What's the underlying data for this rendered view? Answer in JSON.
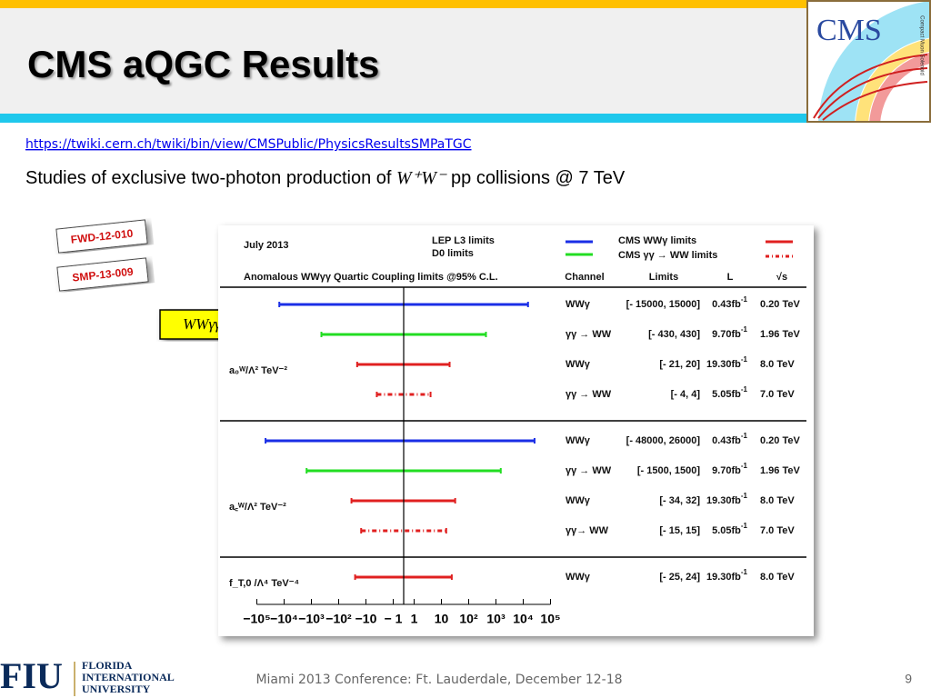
{
  "header": {
    "title": "CMS aQGC Results",
    "logo": "CMS",
    "logo_side": "Compact Muon Solenoid"
  },
  "link": "https://twiki.cern.ch/twiki/bin/view/CMSPublic/PhysicsResultsSMPaTGC",
  "subtitle": {
    "before": "Studies of exclusive two-photon production of",
    "math": "W⁺W⁻",
    "after": "pp collisions @ 7 TeV"
  },
  "tags": [
    "FWD-12-010",
    "SMP-13-009"
  ],
  "callout": "WWγγ",
  "plot": {
    "title": "July 2013",
    "subtitle": "Anomalous WWγγ Quartic Coupling limits @95% C.L.",
    "legend": [
      {
        "name": "LEP L3 limits",
        "color": "#1a2ee6",
        "dashed": false
      },
      {
        "name": "D0 limits",
        "color": "#22dd22",
        "dashed": false
      },
      {
        "name": "CMS WWγ limits",
        "color": "#e02020",
        "dashed": false
      },
      {
        "name": "CMS γγ → WW limits",
        "color": "#e02020",
        "dashed": true
      }
    ],
    "columns": [
      "Channel",
      "Limits",
      "L",
      "√s"
    ],
    "lumi_sup": "-1",
    "groups": [
      {
        "label": "a₀ᵂ/Λ² TeV⁻²",
        "rows": [
          {
            "channel": "WWγ",
            "limits": [
              -15000,
              15000
            ],
            "limits_label": "[- 15000, 15000]",
            "lumi": "0.43fb",
            "energy": "0.20 TeV",
            "series": 0
          },
          {
            "channel": "γγ → WW",
            "limits": [
              -430,
              430
            ],
            "limits_label": "[- 430, 430]",
            "lumi": "9.70fb",
            "energy": "1.96 TeV",
            "series": 1
          },
          {
            "channel": "WWγ",
            "limits": [
              -21,
              20
            ],
            "limits_label": "[- 21, 20]",
            "lumi": "19.30fb",
            "energy": "8.0  TeV",
            "series": 2
          },
          {
            "channel": "γγ → WW",
            "limits": [
              -4,
              4
            ],
            "limits_label": "[- 4, 4]",
            "lumi": "5.05fb",
            "energy": "7.0  TeV",
            "series": 3
          }
        ]
      },
      {
        "label": "a꜀ᵂ/Λ² TeV⁻²",
        "rows": [
          {
            "channel": "WWγ",
            "limits": [
              -48000,
              26000
            ],
            "limits_label": "[- 48000, 26000]",
            "lumi": "0.43fb",
            "energy": "0.20 TeV",
            "series": 0
          },
          {
            "channel": "γγ → WW",
            "limits": [
              -1500,
              1500
            ],
            "limits_label": "[- 1500, 1500]",
            "lumi": "9.70fb",
            "energy": "1.96 TeV",
            "series": 1
          },
          {
            "channel": "WWγ",
            "limits": [
              -34,
              32
            ],
            "limits_label": "[- 34, 32]",
            "lumi": "19.30fb",
            "energy": "8.0  TeV",
            "series": 2
          },
          {
            "channel": "γγ→ WW",
            "limits": [
              -15,
              15
            ],
            "limits_label": "[- 15, 15]",
            "lumi": "5.05fb",
            "energy": "7.0  TeV",
            "series": 3
          }
        ]
      },
      {
        "label": "f_T,0 /Λ⁴ TeV⁻⁴",
        "rows": [
          {
            "channel": "WWγ",
            "limits": [
              -25,
              24
            ],
            "limits_label": "[- 25, 24]",
            "lumi": "19.30fb",
            "energy": "8.0  TeV",
            "series": 2
          }
        ]
      }
    ],
    "xticks": [
      {
        "value": -100000,
        "label": "−10⁵"
      },
      {
        "value": -10000,
        "label": "−10⁴"
      },
      {
        "value": -1000,
        "label": "−10³"
      },
      {
        "value": -100,
        "label": "−10²"
      },
      {
        "value": -10,
        "label": "−10"
      },
      {
        "value": -1,
        "label": "− 1"
      },
      1,
      10,
      {
        "value": 100,
        "label": "10²"
      },
      {
        "value": 1000,
        "label": "10³"
      },
      {
        "value": 10000,
        "label": "10⁴"
      },
      {
        "value": 100000,
        "label": "10⁵"
      }
    ]
  },
  "footer": {
    "university": [
      "FLORIDA",
      "INTERNATIONAL",
      "UNIVERSITY"
    ],
    "logo": "FIU",
    "conference": "Miami 2013 Conference: Ft. Lauderdale, December 12-18",
    "page": "9"
  }
}
